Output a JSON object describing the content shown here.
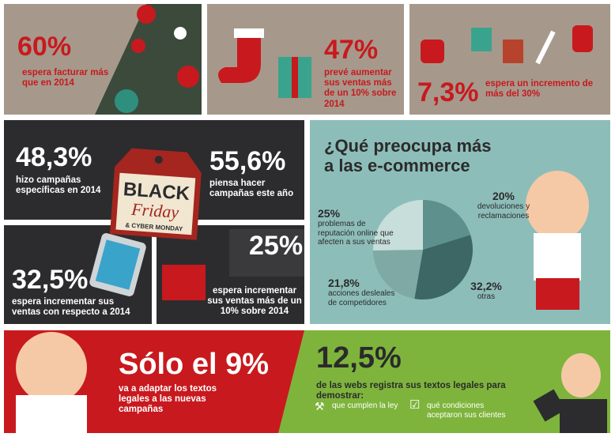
{
  "stats": [
    {
      "value": "60%",
      "text": "espera facturar más que en 2014"
    },
    {
      "value": "47%",
      "text": "prevé aumentar sus ventas más de un 10% sobre 2014"
    },
    {
      "value": "7,3%",
      "text": "espera un incremento de más del 30%"
    },
    {
      "value": "48,3%",
      "text": "hizo campañas específicas en 2014"
    },
    {
      "value": "55,6%",
      "text": "piensa hacer campañas este año"
    },
    {
      "value": "32,5%",
      "text": "espera incrementar sus ventas con respecto a 2014"
    },
    {
      "value": "25%",
      "text": "espera incrementar sus ventas más de un 10% sobre 2014"
    },
    {
      "value": "Sólo el 9%",
      "text": "va a adaptar los textos legales a las nuevas campañas"
    }
  ],
  "tag": {
    "line1": "BLACK",
    "line2": "Friday",
    "line3": "& CYBER MONDAY"
  },
  "chart_data": {
    "type": "pie",
    "title": "¿Qué preocupa más a las e-commerce",
    "categories": [
      "devoluciones y reclamaciones",
      "otras",
      "acciones desleales de competidores",
      "problemas de reputación online que afecten a sus ventas"
    ],
    "values": [
      20,
      32.2,
      21.8,
      25
    ],
    "value_labels": [
      "20%",
      "32,2%",
      "21,8%",
      "25%"
    ],
    "colors": [
      "#5e918d",
      "#3c6764",
      "#7ea9a5",
      "#c7dedb"
    ]
  },
  "legal": {
    "value": "12,5%",
    "text": "de las webs registra sus textos legales para demostrar:",
    "items": [
      "que cumplen la ley",
      "qué condiciones aceptaron sus clientes"
    ]
  }
}
